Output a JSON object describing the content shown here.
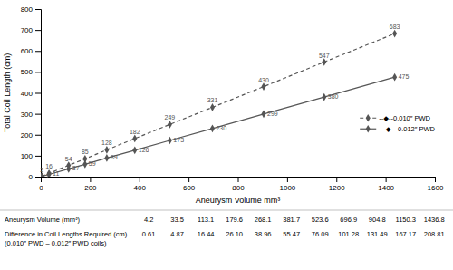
{
  "chart_data": {
    "type": "line",
    "xlabel": "Aneurysm Volume mm³",
    "ylabel": "Total Coil Length (cm)",
    "x": [
      4.2,
      33.5,
      113.1,
      179.6,
      268.1,
      381.7,
      523.6,
      696.9,
      904.8,
      1150.3,
      1436.8
    ],
    "series": [
      {
        "name": "--◆--0.010″ PWD",
        "color": "#555555",
        "line_style": "dashed",
        "marker": "diamond",
        "values": [
          2,
          16,
          54,
          85,
          128,
          182,
          249,
          331,
          430,
          547,
          683
        ]
      },
      {
        "name": "—◆—0.012″ PWD",
        "color": "#555555",
        "line_style": "solid",
        "marker": "diamond",
        "values": [
          1,
          11,
          37,
          59,
          89,
          126,
          173,
          230,
          299,
          380,
          475
        ]
      }
    ],
    "xlim": [
      0,
      1600
    ],
    "ylim": [
      0,
      800
    ],
    "xticks": [
      0,
      200,
      400,
      600,
      800,
      1000,
      1200,
      1400,
      1600
    ],
    "yticks": [
      0,
      100,
      200,
      300,
      400,
      500,
      600,
      700,
      800
    ],
    "grid": false,
    "legend": "right",
    "data_labels": true,
    "table": {
      "rows": [
        {
          "label": [
            "Aneurysm Volume (mm³)"
          ],
          "values": [
            "4.2",
            "33.5",
            "113.1",
            "179.6",
            "268.1",
            "381.7",
            "523.6",
            "696.9",
            "904.8",
            "1150.3",
            "1436.8"
          ]
        },
        {
          "label": [
            "Difference in Coil Lengths Required (cm)",
            "(0.010″ PWD – 0.012″ PWD coils)"
          ],
          "values": [
            "0.61",
            "4.87",
            "16.44",
            "26.10",
            "38.96",
            "55.47",
            "76.09",
            "101.28",
            "131.49",
            "167.17",
            "208.81"
          ]
        }
      ]
    }
  }
}
